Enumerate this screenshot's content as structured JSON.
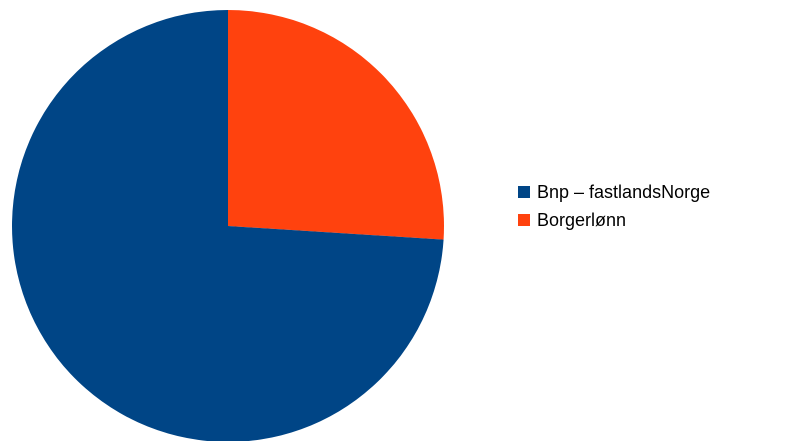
{
  "chart_data": {
    "type": "pie",
    "title": "",
    "slices": [
      {
        "label": "Bnp – fastlandsNorge",
        "value": 74,
        "color": "#004586"
      },
      {
        "label": "Borgerlønn",
        "value": 26,
        "color": "#ff420e"
      }
    ],
    "legend_position": "right"
  }
}
